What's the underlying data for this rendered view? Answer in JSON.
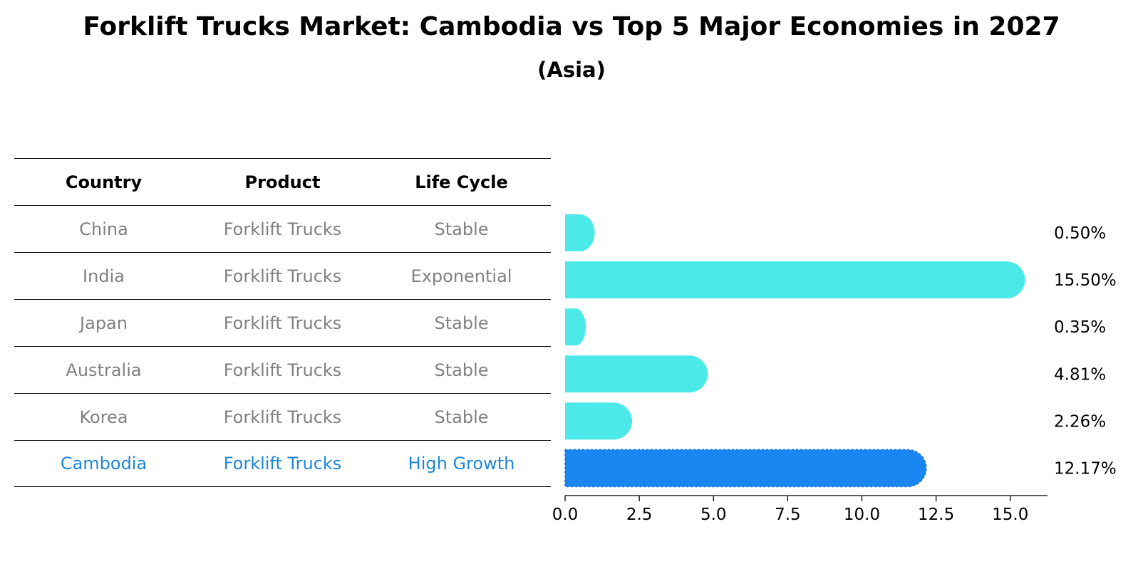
{
  "title": "Forklift Trucks Market: Cambodia vs Top 5 Major Economies in 2027",
  "subtitle": "(Asia)",
  "table": {
    "headers": [
      "Country",
      "Product",
      "Life Cycle"
    ],
    "rows": [
      [
        "China",
        "Forklift Trucks",
        "Stable"
      ],
      [
        "India",
        "Forklift Trucks",
        "Exponential"
      ],
      [
        "Japan",
        "Forklift Trucks",
        "Stable"
      ],
      [
        "Australia",
        "Forklift Trucks",
        "Stable"
      ],
      [
        "Korea",
        "Forklift Trucks",
        "Stable"
      ],
      [
        "Cambodia",
        "Forklift Trucks",
        "High Growth"
      ]
    ]
  },
  "chart_data": {
    "type": "bar",
    "orientation": "horizontal",
    "title": "Forklift Trucks Market: Cambodia vs Top 5 Major Economies in 2027",
    "subtitle": "(Asia)",
    "categories": [
      "China",
      "India",
      "Japan",
      "Australia",
      "Korea",
      "Cambodia"
    ],
    "values": [
      0.5,
      15.5,
      0.35,
      4.81,
      2.26,
      12.17
    ],
    "value_labels": [
      "0.50%",
      "15.50%",
      "0.35%",
      "4.81%",
      "2.26%",
      "12.17%"
    ],
    "highlight": "Cambodia",
    "xlim": [
      0,
      16.3
    ],
    "xticks": [
      "0.0",
      "2.5",
      "5.0",
      "7.5",
      "10.0",
      "12.5",
      "15.0"
    ],
    "xtick_values": [
      0,
      2.5,
      5.0,
      7.5,
      10.0,
      12.5,
      15.0
    ],
    "colors": {
      "default": "#4beae9",
      "highlight": "#1a86f2"
    }
  }
}
